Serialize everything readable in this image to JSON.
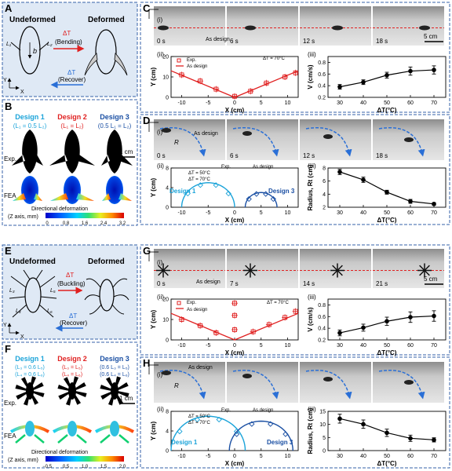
{
  "panels": {
    "A": {
      "letter": "A",
      "undeformed": "Undeformed",
      "deformed": "Deformed",
      "bending_top": "ΔT",
      "bending_mid": "(Bending)",
      "recover_top": "ΔT",
      "recover_mid": "(Recover)",
      "L1": "L₁",
      "L2": "L₂",
      "b": "b",
      "axis_x": "X",
      "axis_y": "Y"
    },
    "B": {
      "letter": "B",
      "designs": [
        {
          "title": "Design 1",
          "rule": "(L₁ = 0.5 L₂)",
          "color": "#1aa3d9"
        },
        {
          "title": "Design 2",
          "rule": "(L₁ = L₂)",
          "color": "#e02020"
        },
        {
          "title": "Design 3",
          "rule": "(0.5 L₁ = L₂)",
          "color": "#1a4fa3"
        }
      ],
      "exp": "Exp.",
      "fea": "FEA",
      "scale": "1 cm",
      "colorbar_title": "Directional deformation",
      "colorbar_unit": "(Z axis, mm)",
      "colorbar_ticks": [
        "0",
        "0.8",
        "1.6",
        "2.4",
        "3.2"
      ]
    },
    "C": {
      "letter": "C",
      "sub_i": "(i)",
      "sub_ii": "(ii)",
      "sub_iii": "(iii)",
      "times": [
        "0 s",
        "6 s",
        "12 s",
        "18 s"
      ],
      "as_design": "As design",
      "scale": "5 cm",
      "legend_exp": "Exp.",
      "legend_design": "As design",
      "dT": "ΔT = 70°C"
    },
    "D": {
      "letter": "D",
      "sub_i": "(i)",
      "sub_ii": "(ii)",
      "sub_iii": "(iii)",
      "times": [
        "0 s",
        "6 s",
        "12 s",
        "18 s"
      ],
      "as_design": "As design",
      "r": "R",
      "legend_exp": "Exp.",
      "legend_design": "As design",
      "dT50": "ΔT = 50°C",
      "dT70": "ΔT = 70°C",
      "design1": "Design 1",
      "design3": "Design 3"
    },
    "E": {
      "letter": "E",
      "undeformed": "Undeformed",
      "deformed": "Deformed",
      "buckling_top": "ΔT",
      "buckling_mid": "(Buckling)",
      "recover_top": "ΔT",
      "recover_mid": "(Recover)",
      "L3": "L₃",
      "L4": "L₄",
      "L5": "L₅",
      "L6": "L₆",
      "axis_x": "X",
      "axis_y": "Y"
    },
    "F": {
      "letter": "F",
      "designs": [
        {
          "title": "Design 1",
          "rule1": "(L₃ = 0.6 L₅)",
          "rule2": "(L₄ = 0.6 L₆)",
          "color": "#1aa3d9"
        },
        {
          "title": "Design 2",
          "rule1": "(L₃ = L₅)",
          "rule2": "(L₄ = L₆)",
          "color": "#e02020"
        },
        {
          "title": "Design 3",
          "rule1": "(0.6 L₃ = L₅)",
          "rule2": "(0.6 L₄ = L₆)",
          "color": "#1a4fa3"
        }
      ],
      "exp": "Exp.",
      "fea": "FEA",
      "scale": "1 cm",
      "colorbar_title": "Directional deformation",
      "colorbar_unit": "(Z axis, mm)",
      "colorbar_ticks": [
        "−0.5",
        "0.5",
        "1.0",
        "1.5",
        "2.0"
      ]
    },
    "G": {
      "letter": "G",
      "sub_i": "(i)",
      "sub_ii": "(ii)",
      "sub_iii": "(iii)",
      "times": [
        "0 s",
        "7 s",
        "14 s",
        "21 s"
      ],
      "as_design": "As design",
      "scale": "5 cm",
      "legend_exp": "Exp.",
      "legend_design": "As design",
      "dT": "ΔT = 70°C"
    },
    "H": {
      "letter": "H",
      "sub_i": "(i)",
      "sub_ii": "(ii)",
      "sub_iii": "(iii)",
      "as_design": "As design",
      "r": "R",
      "legend_exp": "Exp.",
      "legend_design": "As design",
      "dT50": "ΔT = 50°C",
      "dT70": "ΔT = 70°C",
      "design1": "Design 1",
      "design3": "Design 3"
    }
  },
  "chart_data": [
    {
      "id": "C-ii",
      "type": "line",
      "xlabel": "X (cm)",
      "ylabel": "Y (cm)",
      "xlim": [
        -12,
        12
      ],
      "ylim": [
        0,
        20
      ],
      "xticks": [
        -10,
        -5,
        0,
        5,
        10
      ],
      "yticks": [
        0,
        10,
        20
      ],
      "series": [
        {
          "name": "As design",
          "x": [
            -12,
            0,
            12
          ],
          "y": [
            13,
            0,
            13
          ]
        },
        {
          "name": "Exp.",
          "x": [
            -10,
            -6.5,
            -3.5,
            0,
            3,
            6,
            9.5,
            11.5
          ],
          "y": [
            11,
            8,
            4,
            0.5,
            3,
            7,
            10,
            12
          ]
        }
      ]
    },
    {
      "id": "C-iii",
      "type": "line",
      "xlabel": "ΔT(°C)",
      "ylabel": "V (cm/s)",
      "xlim": [
        25,
        75
      ],
      "ylim": [
        0.2,
        0.9
      ],
      "xticks": [
        30,
        40,
        50,
        60,
        70
      ],
      "yticks": [
        0.2,
        0.4,
        0.6,
        0.8
      ],
      "x": [
        30,
        40,
        50,
        60,
        70
      ],
      "y": [
        0.38,
        0.46,
        0.58,
        0.65,
        0.67
      ],
      "err": [
        0.04,
        0.04,
        0.05,
        0.07,
        0.07
      ]
    },
    {
      "id": "D-ii",
      "type": "line",
      "xlabel": "X (cm)",
      "ylabel": "Y (cm)",
      "xlim": [
        -12,
        12
      ],
      "ylim": [
        0,
        8
      ],
      "xticks": [
        -10,
        -5,
        0,
        5,
        10
      ],
      "yticks": [
        0,
        4,
        8
      ],
      "series": [
        {
          "name": "Design 1",
          "cx": -5,
          "r": 5
        },
        {
          "name": "Design 3",
          "cx": 5,
          "r": 3
        }
      ]
    },
    {
      "id": "D-iii",
      "type": "line",
      "xlabel": "ΔT(°C)",
      "ylabel": "Radius, Rt (cm)",
      "xlim": [
        25,
        75
      ],
      "ylim": [
        2,
        8
      ],
      "xticks": [
        30,
        40,
        50,
        60,
        70
      ],
      "yticks": [
        2,
        4,
        6,
        8
      ],
      "x": [
        30,
        40,
        50,
        60,
        70
      ],
      "y": [
        7.4,
        6.2,
        4.3,
        2.9,
        2.5
      ],
      "err": [
        0.4,
        0.4,
        0.3,
        0.3,
        0.2
      ]
    },
    {
      "id": "G-ii",
      "type": "line",
      "xlabel": "X (cm)",
      "ylabel": "Y (cm)",
      "xlim": [
        -12,
        12
      ],
      "ylim": [
        0,
        20
      ],
      "xticks": [
        -10,
        -5,
        0,
        5,
        10
      ],
      "yticks": [
        0,
        10,
        20
      ],
      "series": [
        {
          "name": "As design",
          "x": [
            -12,
            0,
            12
          ],
          "y": [
            13,
            0,
            13
          ]
        },
        {
          "name": "Exp.",
          "x": [
            -10,
            -6.5,
            -3.5,
            0,
            0,
            0,
            3.5,
            6.5,
            9.5,
            11.5
          ],
          "y": [
            10,
            7,
            3.5,
            5,
            12,
            18,
            4,
            7.5,
            11,
            14
          ]
        }
      ]
    },
    {
      "id": "G-iii",
      "type": "line",
      "xlabel": "ΔT(°C)",
      "ylabel": "V (cm/s)",
      "xlim": [
        25,
        75
      ],
      "ylim": [
        0.2,
        0.9
      ],
      "xticks": [
        30,
        40,
        50,
        60,
        70
      ],
      "yticks": [
        0.2,
        0.4,
        0.6,
        0.8
      ],
      "x": [
        30,
        40,
        50,
        60,
        70
      ],
      "y": [
        0.32,
        0.41,
        0.52,
        0.59,
        0.61
      ],
      "err": [
        0.05,
        0.06,
        0.07,
        0.09,
        0.09
      ]
    },
    {
      "id": "H-ii",
      "type": "line",
      "xlabel": "X (cm)",
      "ylabel": "Y (cm)",
      "xlim": [
        -12,
        12
      ],
      "ylim": [
        0,
        8
      ],
      "xticks": [
        -10,
        -5,
        0,
        5,
        10
      ],
      "yticks": [
        0,
        4,
        8
      ],
      "series": [
        {
          "name": "Design 1",
          "cx": -5,
          "r": 7
        },
        {
          "name": "Design 3",
          "cx": 5,
          "r": 6
        }
      ]
    },
    {
      "id": "H-iii",
      "type": "line",
      "xlabel": "ΔT(°C)",
      "ylabel": "Radius, Rt (cm)",
      "xlim": [
        25,
        75
      ],
      "ylim": [
        0,
        15
      ],
      "xticks": [
        30,
        40,
        50,
        60,
        70
      ],
      "yticks": [
        0,
        5,
        10,
        15
      ],
      "x": [
        30,
        40,
        50,
        60,
        70
      ],
      "y": [
        12.2,
        10.1,
        6.8,
        4.7,
        4.1
      ],
      "err": [
        1.7,
        1.6,
        1.4,
        1.2,
        0.8
      ]
    }
  ]
}
